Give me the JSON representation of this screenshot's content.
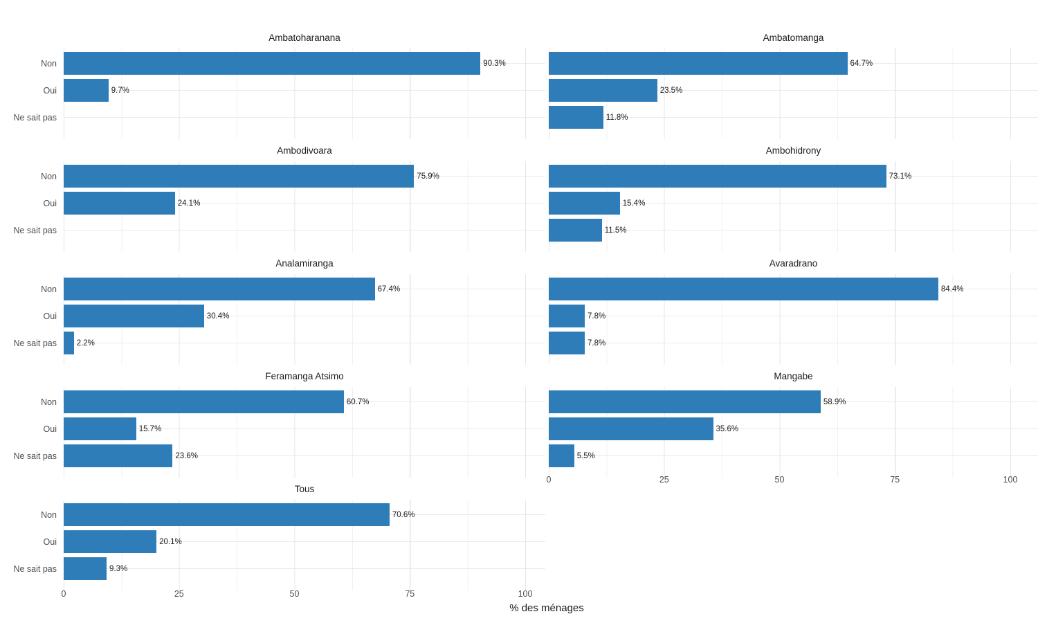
{
  "chart_data": {
    "type": "bar",
    "orientation": "horizontal",
    "categories": [
      "Non",
      "Oui",
      "Ne sait pas"
    ],
    "xlabel": "% des ménages",
    "xlim": [
      0,
      100
    ],
    "x_ticks": [
      0,
      25,
      50,
      75,
      100
    ],
    "x_tick_labels": [
      "0",
      "25",
      "50",
      "75",
      "100"
    ],
    "grid": true,
    "legend": null,
    "bar_color": "#2E7CB8",
    "axis_text_color": "#4d4d4d",
    "facets": [
      {
        "title": "Ambatoharanana",
        "values": [
          90.3,
          9.7,
          null
        ],
        "value_labels": [
          "90.3%",
          "9.7%",
          null
        ]
      },
      {
        "title": "Ambatomanga",
        "values": [
          64.7,
          23.5,
          11.8
        ],
        "value_labels": [
          "64.7%",
          "23.5%",
          "11.8%"
        ]
      },
      {
        "title": "Ambodivoara",
        "values": [
          75.9,
          24.1,
          null
        ],
        "value_labels": [
          "75.9%",
          "24.1%",
          null
        ]
      },
      {
        "title": "Ambohidrony",
        "values": [
          73.1,
          15.4,
          11.5
        ],
        "value_labels": [
          "73.1%",
          "15.4%",
          "11.5%"
        ]
      },
      {
        "title": "Analamiranga",
        "values": [
          67.4,
          30.4,
          2.2
        ],
        "value_labels": [
          "67.4%",
          "30.4%",
          "2.2%"
        ]
      },
      {
        "title": "Avaradrano",
        "values": [
          84.4,
          7.8,
          7.8
        ],
        "value_labels": [
          "84.4%",
          "7.8%",
          "7.8%"
        ]
      },
      {
        "title": "Feramanga Atsimo",
        "values": [
          60.7,
          15.7,
          23.6
        ],
        "value_labels": [
          "60.7%",
          "15.7%",
          "23.6%"
        ]
      },
      {
        "title": "Mangabe",
        "values": [
          58.9,
          35.6,
          5.5
        ],
        "value_labels": [
          "58.9%",
          "35.6%",
          "5.5%"
        ]
      },
      {
        "title": "Tous",
        "values": [
          70.6,
          20.1,
          9.3
        ],
        "value_labels": [
          "70.6%",
          "20.1%",
          "9.3%"
        ]
      }
    ]
  }
}
